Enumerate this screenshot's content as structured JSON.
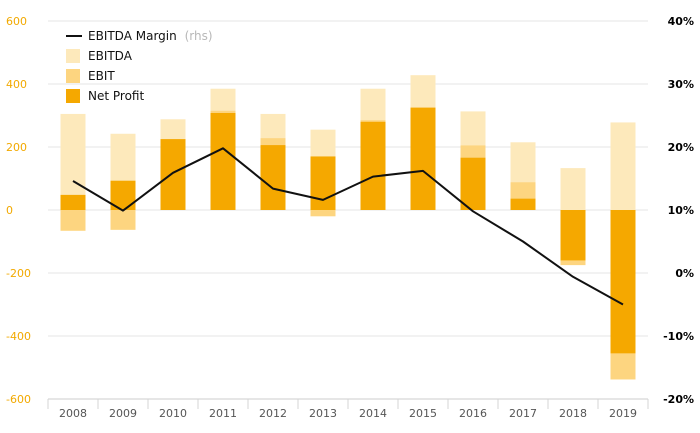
{
  "chart_data": {
    "type": "bar",
    "categories": [
      "2008",
      "2009",
      "2010",
      "2011",
      "2012",
      "2013",
      "2014",
      "2015",
      "2016",
      "2017",
      "2018",
      "2019"
    ],
    "series": [
      {
        "name": "EBITDA",
        "values": [
          305,
          242,
          288,
          385,
          305,
          255,
          385,
          428,
          313,
          215,
          133,
          278
        ],
        "color": "#fde9bb"
      },
      {
        "name": "EBIT",
        "values": [
          -66,
          -63,
          225,
          315,
          228,
          -20,
          285,
          325,
          205,
          88,
          -175,
          -538
        ],
        "color": "#fdd580"
      },
      {
        "name": "Net Profit",
        "values": [
          48,
          93,
          225,
          308,
          206,
          170,
          280,
          325,
          166,
          36,
          -160,
          -455
        ],
        "color": "#f5a800"
      },
      {
        "name": "EBITDA Margin",
        "axis": "right",
        "values": [
          14.6,
          9.9,
          15.9,
          19.8,
          13.4,
          11.6,
          15.3,
          16.2,
          9.8,
          5.0,
          -0.6,
          -5.0
        ],
        "color": "#111111"
      }
    ],
    "legend_suffix": "(rhs)",
    "left_axis": {
      "ylim": [
        -600,
        600
      ],
      "ticks": [
        "600",
        "400",
        "200",
        "0",
        "-200",
        "-400",
        "-600"
      ],
      "tick_values": [
        600,
        400,
        200,
        0,
        -200,
        -400,
        -600
      ],
      "color": "#f2a900"
    },
    "right_axis": {
      "ylim": [
        -20,
        40
      ],
      "ticks": [
        "40%",
        "30%",
        "20%",
        "10%",
        "0%",
        "-10%",
        "-20%"
      ],
      "tick_values": [
        40,
        30,
        20,
        10,
        0,
        -10,
        -20
      ]
    },
    "grid": true,
    "legend_position": "top-left"
  }
}
